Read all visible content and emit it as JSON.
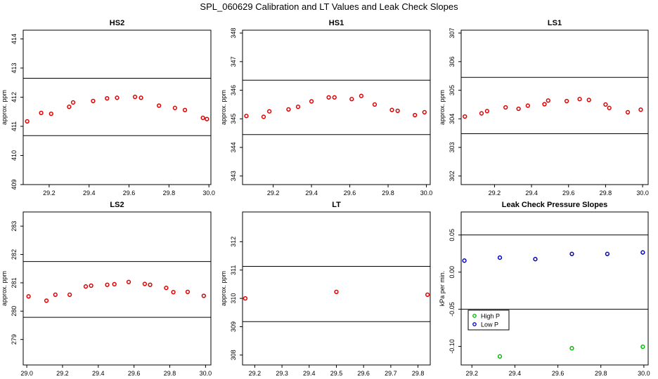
{
  "figure_title": "SPL_060629  Calibration and LT Values and Leak Check Slopes",
  "colors": {
    "red": "#dd0000",
    "green": "#00bb00",
    "blue": "#0000cc",
    "line": "#000000"
  },
  "chart_data": [
    {
      "id": "hs2",
      "type": "scatter",
      "title": "HS2",
      "ylabel": "approx. ppm",
      "xlim": [
        29.07,
        30.01
      ],
      "ylim": [
        409,
        414.3
      ],
      "xticks": [
        "29.2",
        "29.4",
        "29.6",
        "29.8",
        "30.0"
      ],
      "yticks": [
        "409",
        "410",
        "411",
        "412",
        "413",
        "414"
      ],
      "hlines": [
        412.65,
        410.68
      ],
      "series": [
        {
          "name": "",
          "color": "red",
          "x": [
            29.09,
            29.16,
            29.21,
            29.3,
            29.32,
            29.42,
            29.49,
            29.54,
            29.63,
            29.66,
            29.75,
            29.83,
            29.88,
            29.97,
            29.99
          ],
          "y": [
            411.17,
            411.46,
            411.43,
            411.67,
            411.82,
            411.87,
            411.96,
            411.98,
            412.01,
            411.98,
            411.71,
            411.63,
            411.56,
            411.29,
            411.25
          ]
        }
      ]
    },
    {
      "id": "hs1",
      "type": "scatter",
      "title": "HS1",
      "ylabel": "approx. ppm",
      "xlim": [
        29.04,
        30.02
      ],
      "ylim": [
        342.7,
        348.1
      ],
      "xticks": [
        "29.2",
        "29.4",
        "29.6",
        "29.8",
        "30.0"
      ],
      "yticks": [
        "343",
        "344",
        "345",
        "346",
        "347",
        "348"
      ],
      "hlines": [
        346.35,
        344.45
      ],
      "series": [
        {
          "name": "",
          "color": "red",
          "x": [
            29.06,
            29.15,
            29.18,
            29.28,
            29.33,
            29.4,
            29.49,
            29.52,
            29.61,
            29.66,
            29.73,
            29.82,
            29.85,
            29.94,
            29.99
          ],
          "y": [
            345.1,
            345.07,
            345.26,
            345.33,
            345.42,
            345.61,
            345.75,
            345.75,
            345.69,
            345.8,
            345.5,
            345.31,
            345.28,
            345.13,
            345.23
          ]
        }
      ]
    },
    {
      "id": "ls1",
      "type": "scatter",
      "title": "LS1",
      "ylabel": "approx. ppm",
      "xlim": [
        29.02,
        30.03
      ],
      "ylim": [
        301.7,
        307.1
      ],
      "xticks": [
        "29.2",
        "29.4",
        "29.6",
        "29.8",
        "30.0"
      ],
      "yticks": [
        "302",
        "303",
        "304",
        "305",
        "306",
        "307"
      ],
      "hlines": [
        305.45,
        303.48
      ],
      "series": [
        {
          "name": "",
          "color": "red",
          "x": [
            29.04,
            29.13,
            29.16,
            29.26,
            29.33,
            29.38,
            29.47,
            29.49,
            29.59,
            29.66,
            29.71,
            29.8,
            29.82,
            29.92,
            29.99
          ],
          "y": [
            304.08,
            304.19,
            304.27,
            304.4,
            304.35,
            304.46,
            304.51,
            304.64,
            304.62,
            304.69,
            304.66,
            304.5,
            304.38,
            304.23,
            304.32
          ]
        }
      ]
    },
    {
      "id": "ls2",
      "type": "scatter",
      "title": "LS2",
      "ylabel": "approx. ppm",
      "xlim": [
        28.98,
        30.03
      ],
      "ylim": [
        278.1,
        283.5
      ],
      "xticks": [
        "29.0",
        "29.2",
        "29.4",
        "29.6",
        "29.8",
        "30.0"
      ],
      "yticks": [
        "279",
        "280",
        "281",
        "282",
        "283"
      ],
      "hlines": [
        281.75,
        279.78
      ],
      "series": [
        {
          "name": "",
          "color": "red",
          "x": [
            29.01,
            29.11,
            29.16,
            29.24,
            29.33,
            29.36,
            29.45,
            29.49,
            29.57,
            29.66,
            29.69,
            29.78,
            29.82,
            29.9,
            29.99
          ],
          "y": [
            280.52,
            280.37,
            280.58,
            280.58,
            280.87,
            280.9,
            280.93,
            280.95,
            281.03,
            280.96,
            280.93,
            280.82,
            280.67,
            280.68,
            280.54
          ]
        }
      ]
    },
    {
      "id": "lt",
      "type": "scatter",
      "title": "LT",
      "ylabel": "approx. ppm",
      "xlim": [
        29.155,
        29.845
      ],
      "ylim": [
        307.65,
        313.05
      ],
      "xticks": [
        "29.2",
        "29.3",
        "29.4",
        "29.5",
        "29.6",
        "29.7",
        "29.8"
      ],
      "yticks": [
        "308",
        "309",
        "310",
        "311",
        "312"
      ],
      "hlines": [
        311.13,
        309.18
      ],
      "series": [
        {
          "name": "",
          "color": "red",
          "x": [
            29.165,
            29.5,
            29.835
          ],
          "y": [
            310.0,
            310.23,
            310.13
          ]
        }
      ]
    },
    {
      "id": "leak",
      "type": "scatter",
      "title": "Leak Check Pressure Slopes",
      "ylabel": "kPa per min.",
      "xlim": [
        29.15,
        30.02
      ],
      "ylim": [
        -0.125,
        0.081
      ],
      "xticks": [
        "29.2",
        "29.4",
        "29.6",
        "29.8",
        "30.0"
      ],
      "yticks": [
        "-0.10",
        "-0.05",
        "0.00",
        "0.05"
      ],
      "hlines": [
        0.05,
        -0.05
      ],
      "legend": {
        "position": "lower-left",
        "entries": [
          "High P",
          "Low P"
        ]
      },
      "series": [
        {
          "name": "High P",
          "color": "green",
          "x": [
            29.33,
            29.665,
            29.995
          ],
          "y": [
            -0.1135,
            -0.1025,
            -0.1005
          ]
        },
        {
          "name": "Low P",
          "color": "blue",
          "x": [
            29.165,
            29.33,
            29.495,
            29.665,
            29.83,
            29.995
          ],
          "y": [
            0.0155,
            0.0195,
            0.0175,
            0.0245,
            0.0245,
            0.0265
          ]
        }
      ]
    }
  ]
}
